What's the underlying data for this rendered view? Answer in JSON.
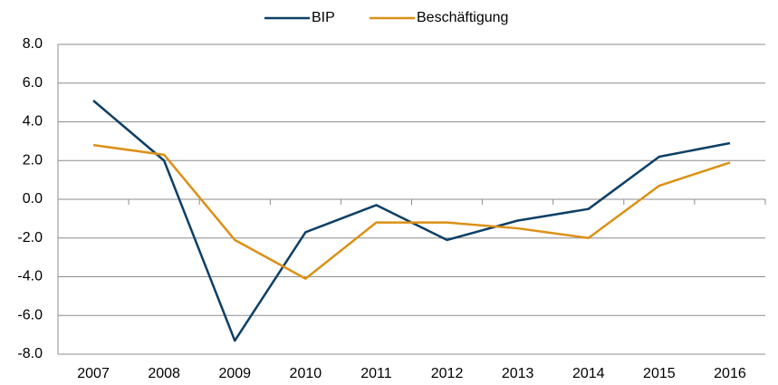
{
  "chart_data": {
    "type": "line",
    "categories": [
      "2007",
      "2008",
      "2009",
      "2010",
      "2011",
      "2012",
      "2013",
      "2014",
      "2015",
      "2016"
    ],
    "series": [
      {
        "name": "BIP",
        "color": "#0d3f66",
        "values": [
          5.1,
          2.0,
          -7.3,
          -1.7,
          -0.3,
          -2.1,
          -1.1,
          -0.5,
          2.2,
          2.9
        ]
      },
      {
        "name": "Beschäftigung",
        "color": "#dc9015",
        "values": [
          2.8,
          2.3,
          -2.1,
          -4.1,
          -1.2,
          -1.2,
          -1.5,
          -2.0,
          0.7,
          1.9
        ]
      }
    ],
    "ylim": [
      -8,
      8
    ],
    "yticks": [
      {
        "value": -8,
        "label": "-8.0"
      },
      {
        "value": -6,
        "label": "-6.0"
      },
      {
        "value": -4,
        "label": "-4.0"
      },
      {
        "value": -2,
        "label": "-2.0"
      },
      {
        "value": 0,
        "label": "0.0"
      },
      {
        "value": 2,
        "label": "2.0"
      },
      {
        "value": 4,
        "label": "4.0"
      },
      {
        "value": 6,
        "label": "6.0"
      },
      {
        "value": 8,
        "label": "8.0"
      }
    ],
    "grid": true,
    "legend": "top"
  }
}
